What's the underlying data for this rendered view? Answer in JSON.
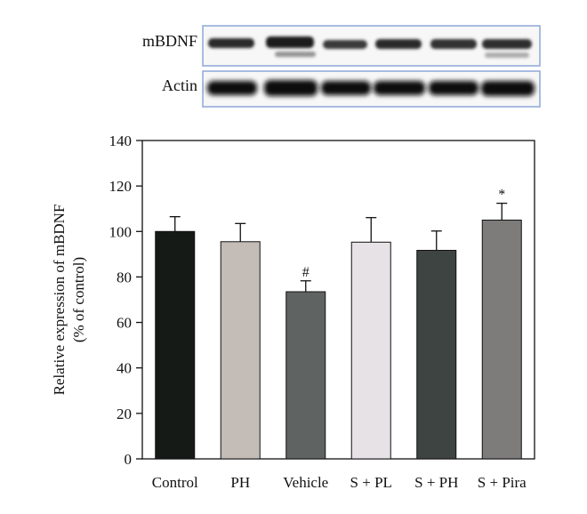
{
  "blot": {
    "rows": [
      {
        "label": "mBDNF"
      },
      {
        "label": "Actin"
      }
    ]
  },
  "colors": {
    "blot_border": "#8ea6d8",
    "axis": "#111111"
  },
  "chart_data": {
    "type": "bar",
    "categories": [
      "Control",
      "PH",
      "Vehicle",
      "S + PL",
      "S + PH",
      "S + Pira"
    ],
    "values": [
      100,
      95.5,
      73.5,
      95.3,
      91.7,
      105
    ],
    "errors": [
      6.5,
      8,
      4.8,
      10.8,
      8.5,
      7.4
    ],
    "annotations": [
      "",
      "",
      "#",
      "",
      "",
      "*"
    ],
    "bar_colors": [
      "#161a16",
      "#c4bcb7",
      "#5f6462",
      "#e6e2e6",
      "#3e4441",
      "#7e7c7b"
    ],
    "title": "",
    "xlabel": "",
    "ylabel": "Relative expression of mBDNF\n(% of control)",
    "ylim": [
      0,
      140
    ],
    "yticks": [
      0,
      20,
      40,
      60,
      80,
      100,
      120,
      140
    ],
    "grid": false
  }
}
